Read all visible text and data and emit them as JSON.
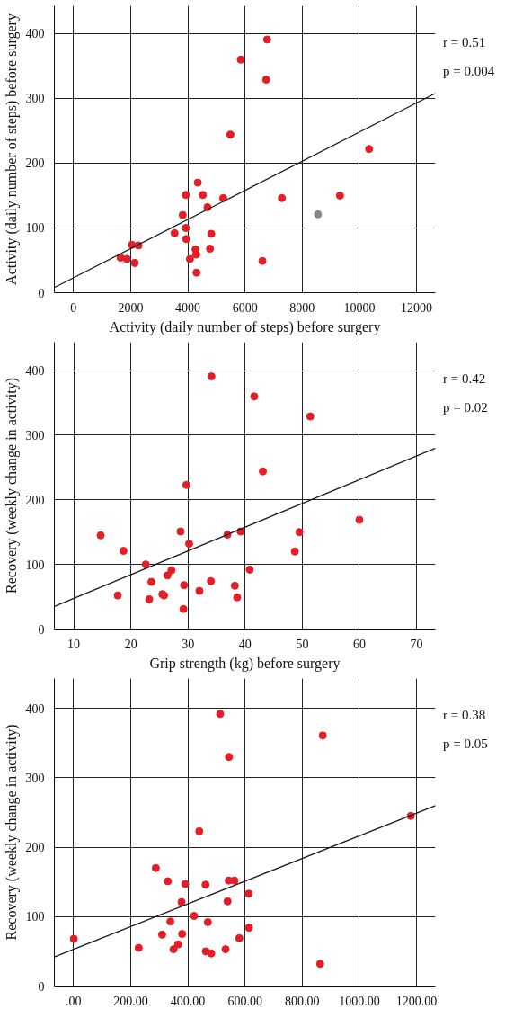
{
  "chart_data": [
    {
      "type": "scatter",
      "xlabel": "Activity (daily number of steps) before surgery",
      "ylabel": "Activity (daily number of steps) before surgery",
      "annotations": [
        "r = 0.51",
        "p = 0.004"
      ],
      "xlim": [
        -670,
        12657
      ],
      "ylim": [
        0,
        443
      ],
      "xticks": [
        0,
        2000,
        4000,
        6000,
        8000,
        10000,
        12000
      ],
      "yticks": [
        0,
        100,
        200,
        300,
        400
      ],
      "grid": true,
      "marker": "circle",
      "series": [
        {
          "color": "#e41e26",
          "x": [
            6773,
            5851,
            6740,
            5488,
            10340,
            4347,
            3930,
            4523,
            5236,
            7289,
            9320,
            4687,
            3820,
            3930,
            3535,
            4819,
            3941,
            2042,
            2272,
            4270,
            4775,
            4292,
            1647,
            1866,
            4073,
            2141,
            6608,
            4303
          ],
          "values": [
            391,
            360,
            329,
            244,
            222,
            170,
            151,
            151,
            146,
            146,
            150,
            132,
            120,
            100,
            92,
            91,
            83,
            74,
            73,
            67,
            68,
            59,
            54,
            52,
            52,
            46,
            49,
            31
          ]
        },
        {
          "color": "#888888",
          "x": [
            8551
          ],
          "values": [
            121
          ]
        },
        {
          "type": "line",
          "marker": "none",
          "color": "#1a1a1a",
          "x": [
            -670,
            12657
          ],
          "values": [
            8,
            308
          ]
        }
      ]
    },
    {
      "type": "scatter",
      "xlabel": "Grip strength (kg) before surgery",
      "ylabel": "Recovery (weekly change in activity)",
      "annotations": [
        "r = 0.42",
        "p = 0.02"
      ],
      "xlim": [
        6.6,
        73.3
      ],
      "ylim": [
        0,
        444
      ],
      "xticks": [
        10,
        20,
        30,
        40,
        50,
        60,
        70
      ],
      "yticks": [
        0,
        100,
        200,
        300,
        400
      ],
      "grid": true,
      "marker": "circle",
      "series": [
        {
          "color": "#e41e26",
          "x": [
            34.1,
            41.6,
            51.4,
            43.1,
            29.7,
            60.0,
            14.7,
            28.7,
            36.9,
            39.2,
            49.5,
            30.2,
            18.7,
            48.7,
            22.6,
            40.8,
            27.1,
            26.4,
            23.6,
            29.3,
            34.0,
            38.2,
            32.0,
            17.7,
            25.5,
            25.8,
            23.2,
            38.6,
            29.2
          ],
          "values": [
            391,
            360,
            329,
            244,
            223,
            169,
            145,
            151,
            146,
            151,
            150,
            132,
            121,
            120,
            100,
            92,
            91,
            83,
            73,
            68,
            74,
            67,
            59,
            52,
            54,
            52,
            46,
            49,
            31
          ]
        },
        {
          "type": "line",
          "marker": "none",
          "color": "#1a1a1a",
          "x": [
            6.6,
            73.3
          ],
          "values": [
            35,
            280
          ]
        }
      ]
    },
    {
      "type": "scatter",
      "ylabel": "Recovery (weekly change in activity)",
      "annotations": [
        "r = 0.38",
        "p = 0.05"
      ],
      "xlim": [
        -67,
        1266
      ],
      "ylim": [
        0,
        443
      ],
      "xticks": [
        {
          "value": 0,
          "label": ".00"
        },
        {
          "value": 200,
          "label": "200.00"
        },
        {
          "value": 400,
          "label": "400.00"
        },
        {
          "value": 600,
          "label": "600.00"
        },
        {
          "value": 800,
          "label": "800.00"
        },
        {
          "value": 1000,
          "label": "1000.00"
        },
        {
          "value": 1200,
          "label": "1200.00"
        }
      ],
      "yticks": [
        0,
        100,
        200,
        300,
        400
      ],
      "grid": true,
      "marker": "circle",
      "series": [
        {
          "color": "#e41e26",
          "x": [
            513,
            872,
            544,
            1180,
            440,
            288,
            330,
            391,
            462,
            543,
            563,
            613,
            378,
            539,
            422,
            339,
            470,
            614,
            1,
            310,
            380,
            580,
            366,
            228,
            350,
            463,
            482,
            532,
            863
          ],
          "values": [
            392,
            361,
            330,
            245,
            223,
            170,
            151,
            147,
            146,
            152,
            152,
            133,
            121,
            122,
            101,
            93,
            92,
            84,
            68,
            74,
            75,
            69,
            60,
            55,
            53,
            50,
            47,
            53,
            32
          ]
        },
        {
          "type": "line",
          "marker": "none",
          "color": "#1a1a1a",
          "x": [
            -67,
            1266
          ],
          "values": [
            42,
            260
          ]
        }
      ]
    }
  ]
}
